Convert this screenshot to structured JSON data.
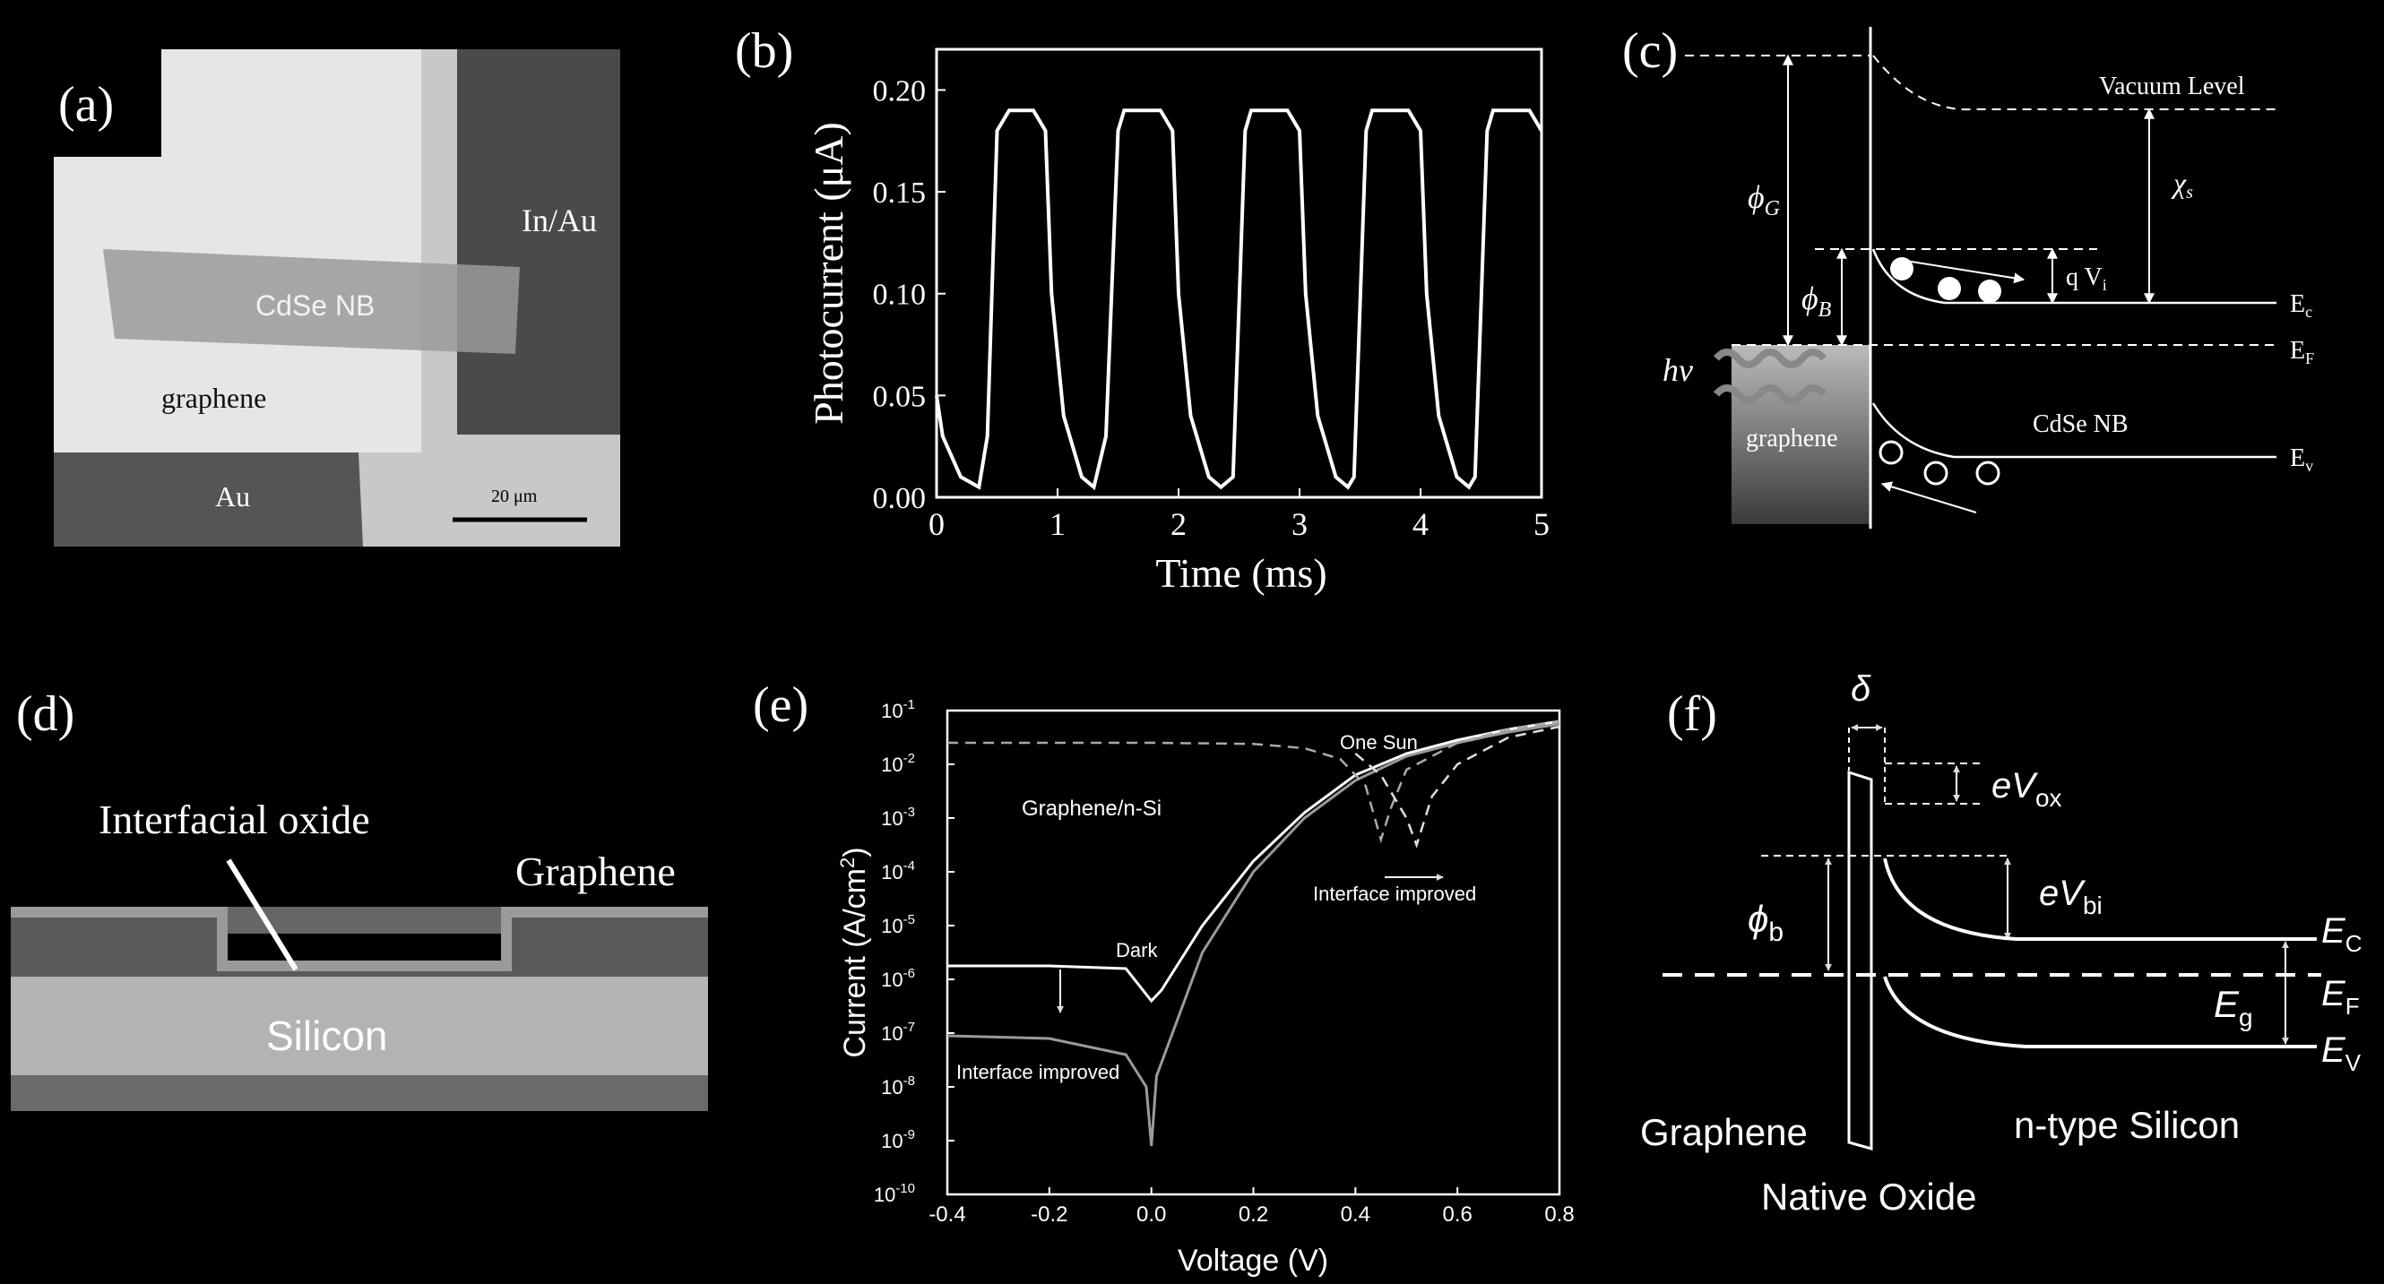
{
  "panels": {
    "a": {
      "label": "(a)",
      "contact_top": "In/Au",
      "nanobelt": "CdSe NB",
      "graphene": "graphene",
      "contact_bottom": "Au",
      "scalebar": "20 μm"
    },
    "b": {
      "label": "(b)",
      "xlabel": "Time (ms)",
      "ylabel": "Photocurrent (μA)",
      "xticks": [
        "0",
        "1",
        "2",
        "3",
        "4",
        "5"
      ],
      "yticks": [
        "0.00",
        "0.05",
        "0.10",
        "0.15",
        "0.20"
      ]
    },
    "c": {
      "label": "(c)",
      "vacuum": "Vacuum Level",
      "phi_g": "ϕ",
      "phi_g_sub": "G",
      "phi_b": "ϕ",
      "phi_b_sub": "B",
      "chi": "χ",
      "chi_sub": "s",
      "qvi": "q V",
      "qvi_sub": "i",
      "ec": "E",
      "ec_sub": "c",
      "ef": "E",
      "ef_sub": "F",
      "ev": "E",
      "ev_sub": "v",
      "hv": "hν",
      "graphene": "graphene",
      "cdse": "CdSe NB"
    },
    "d": {
      "label": "(d)",
      "oxide": "Interfacial oxide",
      "graphene": "Graphene",
      "silicon": "Silicon"
    },
    "e": {
      "label": "(e)",
      "xlabel": "Voltage (V)",
      "ylabel": "Current (A/cm",
      "ylabel_sup": "2",
      "ylabel_end": ")",
      "xticks": [
        "-0.4",
        "-0.2",
        "0.0",
        "0.2",
        "0.4",
        "0.6",
        "0.8"
      ],
      "yexp": [
        "-1",
        "-2",
        "-3",
        "-4",
        "-5",
        "-6",
        "-7",
        "-8",
        "-9",
        "-10"
      ],
      "ybase": "10",
      "one_sun": "One Sun",
      "graphene_nsi": "Graphene/n-Si",
      "interface_improved_top": "Interface improved",
      "dark": "Dark",
      "interface_improved_bottom": "Interface improved"
    },
    "f": {
      "label": "(f)",
      "delta": "δ",
      "evox": "eV",
      "evox_sub": "ox",
      "evbi": "eV",
      "evbi_sub": "bi",
      "phib": "ϕ",
      "phib_sub": "b",
      "ec": "E",
      "ec_sub": "C",
      "ef": "E",
      "ef_sub": "F",
      "eg": "E",
      "eg_sub": "g",
      "ev": "E",
      "ev_sub": "V",
      "graphene": "Graphene",
      "nsi": "n-type Silicon",
      "native_oxide": "Native Oxide"
    }
  },
  "chart_data": [
    {
      "type": "line",
      "panel": "b",
      "xlabel": "Time (ms)",
      "ylabel": "Photocurrent (μA)",
      "xlim": [
        0,
        5
      ],
      "ylim": [
        0,
        0.22
      ],
      "series": [
        {
          "x": [
            0,
            0.05,
            0.2,
            0.35,
            0.42,
            0.5,
            0.6,
            0.8,
            0.9,
            0.95,
            1.05,
            1.2,
            1.3,
            1.4,
            1.5,
            1.55,
            1.65,
            1.85,
            1.95,
            2.0,
            2.1,
            2.25,
            2.35,
            2.45,
            2.55,
            2.6,
            2.7,
            2.9,
            3.0,
            3.05,
            3.15,
            3.3,
            3.4,
            3.45,
            3.55,
            3.6,
            3.7,
            3.9,
            4.0,
            4.05,
            4.15,
            4.3,
            4.4,
            4.45,
            4.55,
            4.6,
            4.7,
            4.9,
            5.0
          ],
          "values": [
            0.05,
            0.03,
            0.01,
            0.005,
            0.03,
            0.18,
            0.19,
            0.19,
            0.18,
            0.1,
            0.04,
            0.01,
            0.005,
            0.03,
            0.18,
            0.19,
            0.19,
            0.19,
            0.18,
            0.1,
            0.04,
            0.01,
            0.005,
            0.01,
            0.18,
            0.19,
            0.19,
            0.19,
            0.18,
            0.1,
            0.04,
            0.01,
            0.005,
            0.01,
            0.18,
            0.19,
            0.19,
            0.19,
            0.18,
            0.1,
            0.04,
            0.01,
            0.005,
            0.01,
            0.18,
            0.19,
            0.19,
            0.19,
            0.18
          ]
        }
      ]
    },
    {
      "type": "line",
      "panel": "e",
      "xlabel": "Voltage (V)",
      "ylabel": "Current (A/cm2)",
      "xlim": [
        -0.4,
        0.8
      ],
      "ylim": [
        -10,
        -1
      ],
      "yscale": "log",
      "series": [
        {
          "x": [
            -0.4,
            -0.2,
            -0.05,
            0.0,
            0.02,
            0.1,
            0.2,
            0.3,
            0.4,
            0.5,
            0.6,
            0.7,
            0.8
          ],
          "values": [
            -5.75,
            -5.75,
            -5.8,
            -6.4,
            -6.2,
            -5.0,
            -3.8,
            -2.9,
            -2.2,
            -1.8,
            -1.55,
            -1.35,
            -1.2
          ]
        },
        {
          "x": [
            -0.4,
            -0.2,
            -0.05,
            -0.01,
            0.0,
            0.01,
            0.1,
            0.2,
            0.3,
            0.4,
            0.5,
            0.6,
            0.7,
            0.8
          ],
          "values": [
            -7.05,
            -7.1,
            -7.4,
            -8.0,
            -9.1,
            -7.8,
            -5.5,
            -4.0,
            -3.0,
            -2.3,
            -1.85,
            -1.6,
            -1.4,
            -1.25
          ]
        },
        {
          "x": [
            -0.4,
            -0.2,
            0.0,
            0.2,
            0.3,
            0.37,
            0.42,
            0.45,
            0.47,
            0.5,
            0.6,
            0.7,
            0.8
          ],
          "values": [
            -1.6,
            -1.6,
            -1.6,
            -1.62,
            -1.7,
            -1.9,
            -2.4,
            -3.4,
            -2.8,
            -2.1,
            -1.6,
            -1.35,
            -1.2
          ]
        },
        {
          "x": [
            0.4,
            0.45,
            0.5,
            0.52,
            0.55,
            0.6,
            0.7,
            0.8
          ],
          "values": [
            -1.8,
            -2.2,
            -3.0,
            -3.5,
            -2.6,
            -2.0,
            -1.5,
            -1.3
          ]
        }
      ]
    }
  ]
}
